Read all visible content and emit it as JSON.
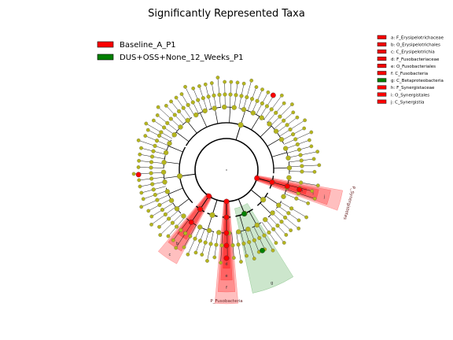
{
  "chart_data": {
    "type": "cladogram",
    "title": "Significantly Represented Taxa",
    "legend_groups": [
      {
        "name": "Baseline_A_P1",
        "color": "#ff0000"
      },
      {
        "name": "DUS+OSS+None_12_Weeks_P1",
        "color": "#008000"
      }
    ],
    "taxa_legend": [
      {
        "code": "a",
        "label": "a: F_Erysipelotrichaceae",
        "group": "Baseline_A_P1"
      },
      {
        "code": "b",
        "label": "b: O_Erysipelotrichales",
        "group": "Baseline_A_P1"
      },
      {
        "code": "c",
        "label": "c: C_Erysipelotrichia",
        "group": "Baseline_A_P1"
      },
      {
        "code": "d",
        "label": "d: F_Fusobacteriaceae",
        "group": "Baseline_A_P1"
      },
      {
        "code": "e",
        "label": "e: O_Fusobacteriales",
        "group": "Baseline_A_P1"
      },
      {
        "code": "f",
        "label": "f: C_Fusobacteria",
        "group": "Baseline_A_P1"
      },
      {
        "code": "g",
        "label": "g: C_Betaproteobacteria",
        "group": "DUS+OSS+None_12_Weeks_P1"
      },
      {
        "code": "h",
        "label": "h: F_Synergistaceae",
        "group": "Baseline_A_P1"
      },
      {
        "code": "i",
        "label": "i: O_Synergistales",
        "group": "Baseline_A_P1"
      },
      {
        "code": "j",
        "label": "j: C_Synergistia",
        "group": "Baseline_A_P1"
      }
    ],
    "sector_labels": [
      {
        "text": "P_Synergistetes",
        "group": "Baseline_A_P1"
      },
      {
        "text": "P_Fusobacteria",
        "group": "Baseline_A_P1"
      }
    ],
    "sector_letters": [
      "a",
      "b",
      "c",
      "d",
      "e",
      "f",
      "g",
      "h",
      "i",
      "j"
    ]
  }
}
